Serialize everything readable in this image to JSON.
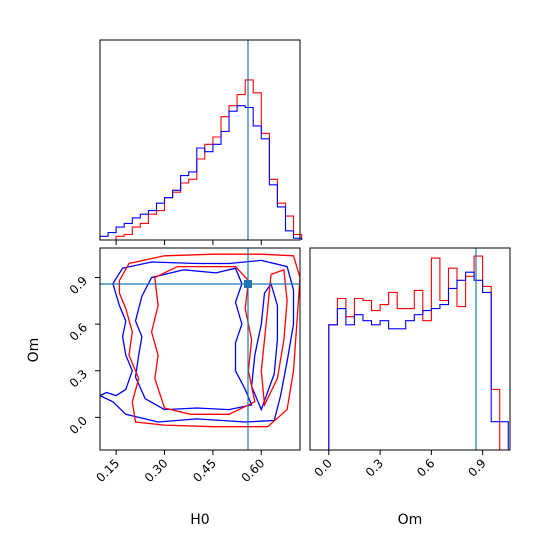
{
  "chart_data": {
    "type": "corner",
    "parameters": [
      "H0",
      "Om"
    ],
    "truths": {
      "H0": 0.59,
      "Om": 0.86
    },
    "colors": {
      "red": "#ff0000",
      "blue": "#0000ff",
      "truth": "#1f77b4"
    },
    "hist_H0": {
      "bin_edges": [
        0.1,
        0.125,
        0.15,
        0.175,
        0.2,
        0.225,
        0.25,
        0.275,
        0.3,
        0.325,
        0.35,
        0.375,
        0.4,
        0.425,
        0.45,
        0.475,
        0.5,
        0.525,
        0.55,
        0.575,
        0.6,
        0.625,
        0.65,
        0.675,
        0.7,
        0.725
      ],
      "red": [
        0.0,
        0.0,
        0.02,
        0.03,
        0.07,
        0.09,
        0.14,
        0.16,
        0.23,
        0.26,
        0.31,
        0.33,
        0.44,
        0.52,
        0.56,
        0.67,
        0.73,
        0.79,
        0.87,
        0.8,
        0.58,
        0.33,
        0.2,
        0.13,
        0.03
      ],
      "blue": [
        0.02,
        0.04,
        0.07,
        0.09,
        0.12,
        0.14,
        0.16,
        0.2,
        0.23,
        0.27,
        0.35,
        0.37,
        0.5,
        0.48,
        0.52,
        0.59,
        0.7,
        0.73,
        0.72,
        0.62,
        0.55,
        0.3,
        0.18,
        0.05,
        0.01
      ]
    },
    "hist_Om": {
      "bin_edges": [
        -0.1,
        -0.05,
        0.0,
        0.05,
        0.1,
        0.15,
        0.2,
        0.25,
        0.3,
        0.35,
        0.4,
        0.45,
        0.5,
        0.55,
        0.6,
        0.65,
        0.7,
        0.75,
        0.8,
        0.85,
        0.9,
        0.95,
        1.0,
        1.05
      ],
      "red": [
        0.0,
        0.0,
        0.62,
        0.75,
        0.66,
        0.75,
        0.74,
        0.69,
        0.72,
        0.78,
        0.7,
        0.7,
        0.79,
        0.64,
        0.95,
        0.74,
        0.9,
        0.71,
        0.86,
        0.96,
        0.81,
        0.3,
        0.0
      ],
      "blue": [
        0.0,
        0.0,
        0.62,
        0.7,
        0.62,
        0.67,
        0.64,
        0.62,
        0.64,
        0.6,
        0.6,
        0.64,
        0.67,
        0.69,
        0.7,
        0.72,
        0.8,
        0.84,
        0.88,
        0.84,
        0.78,
        0.14,
        0.14
      ]
    },
    "contours": [
      {
        "color": "blue",
        "points": [
          [
            0.1,
            0.14
          ],
          [
            0.12,
            0.16
          ],
          [
            0.15,
            0.14
          ],
          [
            0.18,
            0.18
          ],
          [
            0.2,
            0.3
          ],
          [
            0.18,
            0.4
          ],
          [
            0.17,
            0.52
          ],
          [
            0.18,
            0.62
          ],
          [
            0.16,
            0.72
          ],
          [
            0.14,
            0.86
          ],
          [
            0.17,
            0.96
          ],
          [
            0.26,
            1.0
          ],
          [
            0.4,
            0.99
          ],
          [
            0.5,
            0.99
          ],
          [
            0.6,
            1.01
          ],
          [
            0.68,
            0.97
          ],
          [
            0.7,
            0.82
          ],
          [
            0.7,
            0.6
          ],
          [
            0.68,
            0.36
          ],
          [
            0.66,
            0.14
          ],
          [
            0.64,
            -0.02
          ],
          [
            0.55,
            -0.03
          ],
          [
            0.4,
            -0.01
          ],
          [
            0.28,
            -0.03
          ],
          [
            0.18,
            0.02
          ],
          [
            0.14,
            0.1
          ],
          [
            0.1,
            0.14
          ]
        ]
      },
      {
        "color": "blue",
        "points": [
          [
            0.22,
            0.4
          ],
          [
            0.23,
            0.52
          ],
          [
            0.21,
            0.62
          ],
          [
            0.23,
            0.78
          ],
          [
            0.26,
            0.9
          ],
          [
            0.36,
            0.95
          ],
          [
            0.46,
            0.93
          ],
          [
            0.52,
            0.96
          ],
          [
            0.54,
            0.86
          ],
          [
            0.52,
            0.74
          ],
          [
            0.54,
            0.6
          ],
          [
            0.52,
            0.48
          ],
          [
            0.52,
            0.3
          ],
          [
            0.55,
            0.18
          ],
          [
            0.57,
            0.08
          ],
          [
            0.5,
            0.05
          ],
          [
            0.4,
            0.06
          ],
          [
            0.3,
            0.05
          ],
          [
            0.24,
            0.12
          ],
          [
            0.21,
            0.26
          ],
          [
            0.22,
            0.4
          ]
        ]
      },
      {
        "color": "blue",
        "points": [
          [
            0.61,
            0.8
          ],
          [
            0.6,
            0.6
          ],
          [
            0.58,
            0.4
          ],
          [
            0.57,
            0.2
          ],
          [
            0.6,
            0.05
          ],
          [
            0.64,
            0.28
          ],
          [
            0.65,
            0.5
          ],
          [
            0.65,
            0.72
          ],
          [
            0.63,
            0.86
          ],
          [
            0.61,
            0.8
          ]
        ]
      },
      {
        "color": "red",
        "points": [
          [
            0.16,
            0.88
          ],
          [
            0.19,
            0.99
          ],
          [
            0.3,
            1.04
          ],
          [
            0.45,
            1.05
          ],
          [
            0.6,
            1.05
          ],
          [
            0.7,
            1.04
          ],
          [
            0.72,
            0.9
          ],
          [
            0.71,
            0.6
          ],
          [
            0.7,
            0.3
          ],
          [
            0.68,
            0.05
          ],
          [
            0.62,
            -0.06
          ],
          [
            0.45,
            -0.06
          ],
          [
            0.3,
            -0.05
          ],
          [
            0.21,
            -0.03
          ],
          [
            0.2,
            0.1
          ],
          [
            0.22,
            0.25
          ],
          [
            0.19,
            0.4
          ],
          [
            0.2,
            0.55
          ],
          [
            0.18,
            0.7
          ],
          [
            0.16,
            0.8
          ],
          [
            0.16,
            0.88
          ]
        ]
      },
      {
        "color": "red",
        "points": [
          [
            0.27,
            0.25
          ],
          [
            0.28,
            0.4
          ],
          [
            0.26,
            0.55
          ],
          [
            0.28,
            0.72
          ],
          [
            0.27,
            0.9
          ],
          [
            0.34,
            0.97
          ],
          [
            0.45,
            0.97
          ],
          [
            0.52,
            0.97
          ],
          [
            0.56,
            0.88
          ],
          [
            0.55,
            0.7
          ],
          [
            0.57,
            0.5
          ],
          [
            0.56,
            0.3
          ],
          [
            0.58,
            0.1
          ],
          [
            0.5,
            0.02
          ],
          [
            0.38,
            0.02
          ],
          [
            0.3,
            0.06
          ],
          [
            0.27,
            0.25
          ]
        ]
      },
      {
        "color": "red",
        "points": [
          [
            0.63,
            0.92
          ],
          [
            0.62,
            0.7
          ],
          [
            0.61,
            0.5
          ],
          [
            0.6,
            0.3
          ],
          [
            0.61,
            0.08
          ],
          [
            0.65,
            0.25
          ],
          [
            0.67,
            0.5
          ],
          [
            0.68,
            0.75
          ],
          [
            0.67,
            0.95
          ],
          [
            0.63,
            0.92
          ]
        ]
      }
    ]
  }
}
